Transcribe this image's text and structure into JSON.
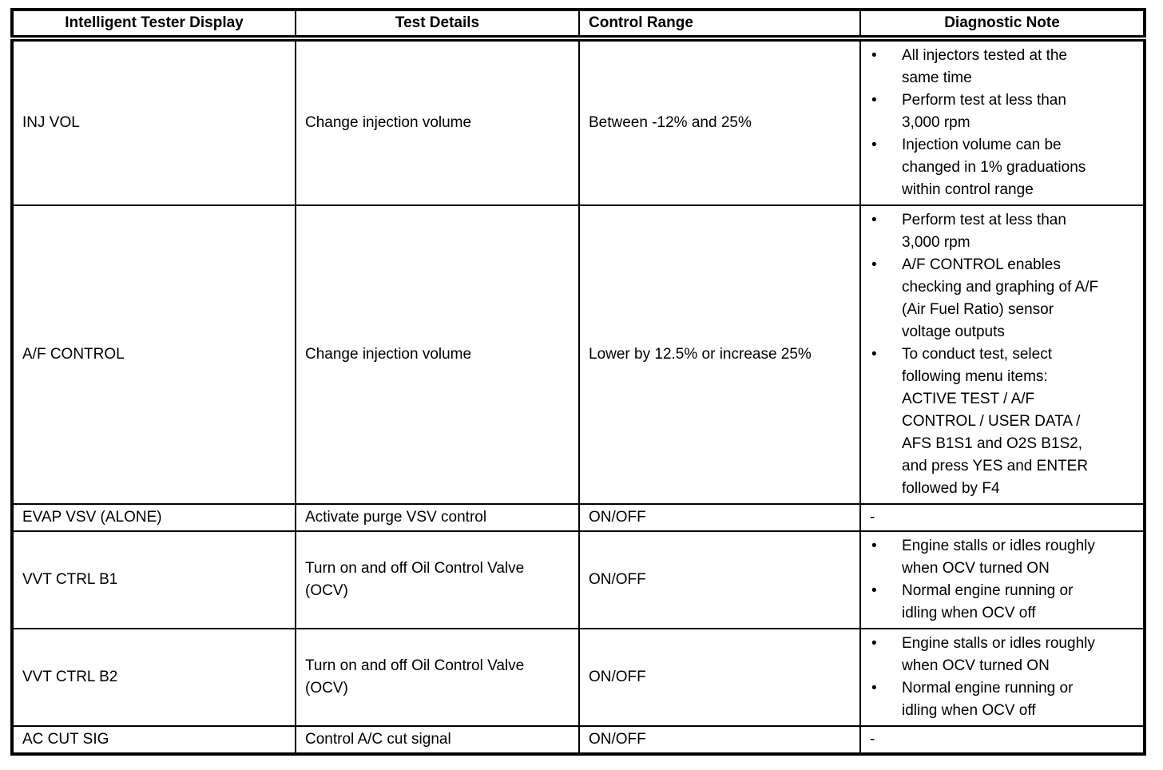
{
  "table": {
    "columns": [
      "Intelligent Tester Display",
      "Test Details",
      "Control Range",
      "Diagnostic Note"
    ],
    "rows": [
      {
        "display": "INJ VOL",
        "test_details": "Change injection volume",
        "control_range": "Between -12% and 25%",
        "notes": [
          "All injectors tested at the same time",
          "Perform test at less than 3,000 rpm",
          "Injection volume can be changed in 1% graduations within control range"
        ]
      },
      {
        "display": "A/F CONTROL",
        "test_details": "Change injection volume",
        "control_range": "Lower by 12.5% or increase 25%",
        "notes": [
          "Perform test at less than 3,000 rpm",
          "A/F CONTROL enables checking and graphing of A/F (Air Fuel Ratio) sensor voltage outputs",
          "To conduct test, select following menu items: ACTIVE TEST / A/F CONTROL / USER DATA / AFS B1S1 and O2S B1S2, and press YES and ENTER followed by F4"
        ]
      },
      {
        "display": "EVAP VSV (ALONE)",
        "test_details": "Activate purge VSV control",
        "control_range": "ON/OFF",
        "notes": "-"
      },
      {
        "display": "VVT CTRL B1",
        "test_details": "Turn on and off Oil Control Valve (OCV)",
        "control_range": "ON/OFF",
        "notes": [
          "Engine stalls or idles roughly when OCV turned ON",
          "Normal engine running or idling when OCV off"
        ]
      },
      {
        "display": "VVT CTRL B2",
        "test_details": "Turn on and off Oil Control Valve (OCV)",
        "control_range": "ON/OFF",
        "notes": [
          "Engine stalls or idles roughly when OCV turned ON",
          "Normal engine running or idling when OCV off"
        ]
      },
      {
        "display": "AC CUT SIG",
        "test_details": "Control A/C cut signal",
        "control_range": "ON/OFF",
        "notes": "-"
      }
    ],
    "bullet_glyph": "•",
    "text_color": "#000000",
    "border_color": "#000000"
  }
}
